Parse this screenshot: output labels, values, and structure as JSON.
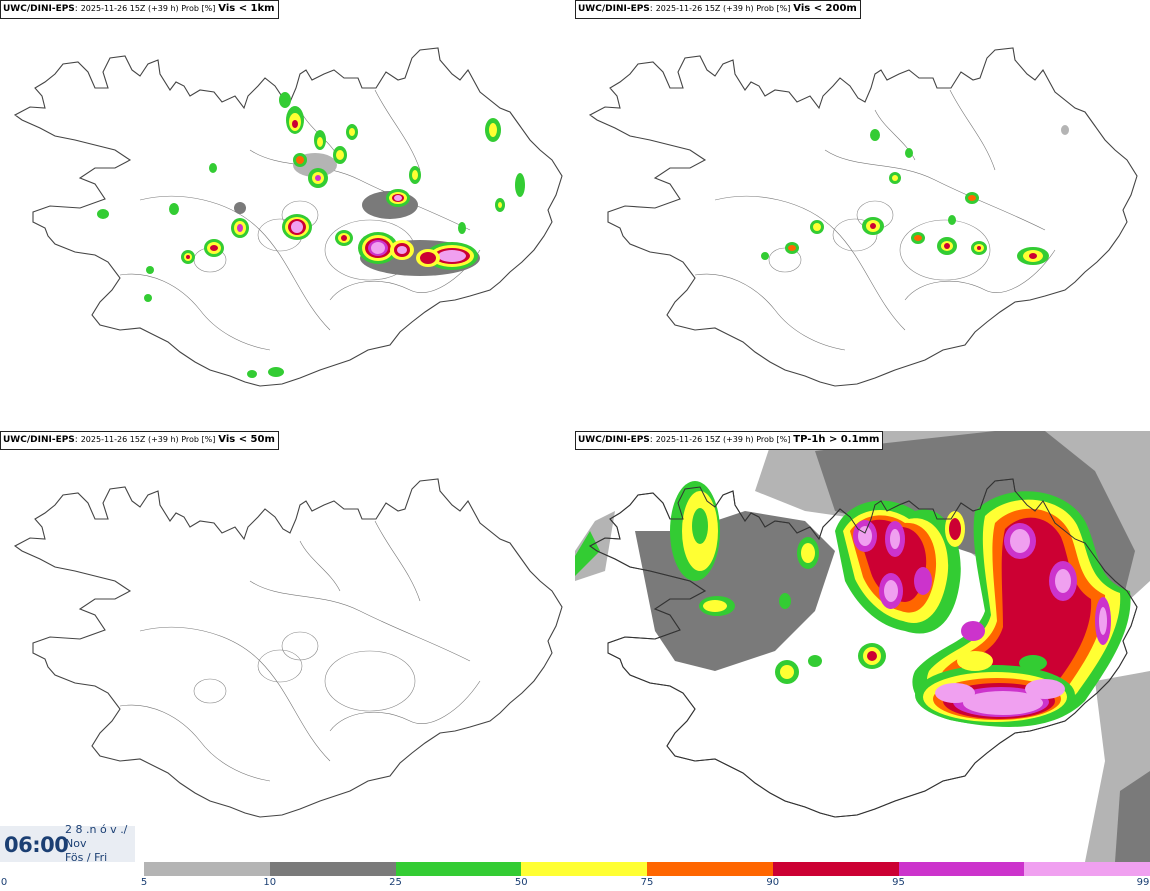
{
  "panels": [
    {
      "model": "UWC/DINI-EPS",
      "meta": "2025-11-26 15Z (+39 h) Prob [%]",
      "variable": "Vis < 1km"
    },
    {
      "model": "UWC/DINI-EPS",
      "meta": "2025-11-26 15Z (+39 h) Prob [%]",
      "variable": "Vis < 200m"
    },
    {
      "model": "UWC/DINI-EPS",
      "meta": "2025-11-26 15Z (+39 h) Prob [%]",
      "variable": "Vis < 50m"
    },
    {
      "model": "UWC/DINI-EPS",
      "meta": "2025-11-26 15Z (+39 h) Prob [%]",
      "variable": "TP-1h > 0.1mm"
    }
  ],
  "valid_time": {
    "clock": "06:00",
    "date_line": "2 8 .n ó v ./",
    "month": "Nov",
    "weekday": "Fös / Fri"
  },
  "colorbar": {
    "labels": [
      "0",
      "5",
      "10",
      "25",
      "50",
      "75",
      "90",
      "95",
      "99"
    ],
    "colors": [
      "#b4b4b4",
      "#7a7a7a",
      "#33cc33",
      "#ffff33",
      "#ff6600",
      "#cc0033",
      "#cc33cc",
      "#f0a0f0"
    ]
  },
  "colors": {
    "coast": "#444444",
    "land": "#ffffff"
  }
}
